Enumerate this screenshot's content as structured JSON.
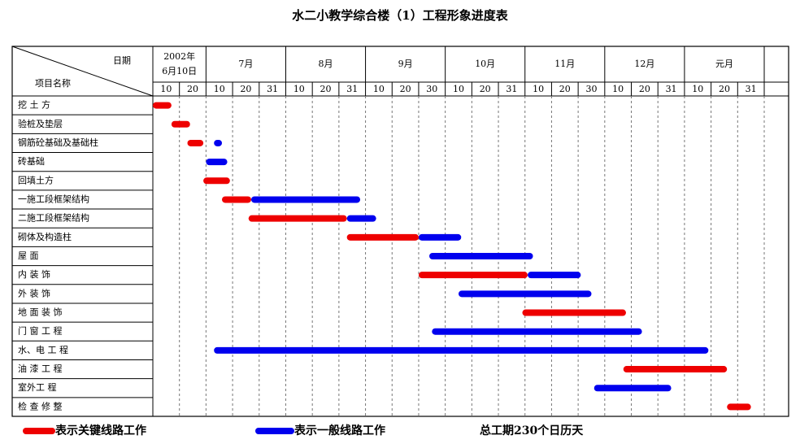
{
  "title": "水二小教学综合楼（1）工程形象进度表",
  "header": {
    "date_label": "日期",
    "item_label": "项目名称",
    "months": [
      {
        "lines": [
          "2002年",
          "6月10日"
        ],
        "days": [
          "10",
          "20"
        ]
      },
      {
        "lines": [
          "7月"
        ],
        "days": [
          "10",
          "20",
          "31"
        ]
      },
      {
        "lines": [
          "8月"
        ],
        "days": [
          "10",
          "20",
          "31"
        ]
      },
      {
        "lines": [
          "9月"
        ],
        "days": [
          "10",
          "20",
          "30"
        ]
      },
      {
        "lines": [
          "10月"
        ],
        "days": [
          "10",
          "20",
          "31"
        ]
      },
      {
        "lines": [
          "11月"
        ],
        "days": [
          "10",
          "20",
          "30"
        ]
      },
      {
        "lines": [
          "12月"
        ],
        "days": [
          "10",
          "20",
          "31"
        ]
      },
      {
        "lines": [
          "元月"
        ],
        "days": [
          "10",
          "20",
          "31"
        ]
      }
    ]
  },
  "tasks": [
    {
      "name": "挖 土 方",
      "key_span": [
        0,
        0.7
      ],
      "normal_span": null
    },
    {
      "name": "验桩及垫层",
      "key_span": [
        0.7,
        1.4
      ],
      "normal_span": null
    },
    {
      "name": "钢筋砼基础及基础柱",
      "key_span": [
        1.3,
        1.9
      ],
      "normal_span": [
        2.3,
        2.6
      ]
    },
    {
      "name": "砖基础",
      "key_span": null,
      "normal_span": [
        2.0,
        2.8
      ]
    },
    {
      "name": "回填土方",
      "key_span": [
        1.9,
        2.9
      ],
      "normal_span": null
    },
    {
      "name": "一施工段框架结构",
      "key_span": [
        2.6,
        3.7
      ],
      "normal_span": [
        3.7,
        7.8
      ]
    },
    {
      "name": "二施工段框架结构",
      "key_span": [
        3.6,
        7.3
      ],
      "normal_span": [
        7.3,
        8.4
      ]
    },
    {
      "name": "砌体及构造柱",
      "key_span": [
        7.3,
        10.0
      ],
      "normal_span": [
        10.0,
        11.6
      ]
    },
    {
      "name": "屋      面",
      "key_span": null,
      "normal_span": [
        10.4,
        14.3
      ]
    },
    {
      "name": "内 装  饰",
      "key_span": [
        10.0,
        14.1
      ],
      "normal_span": [
        14.1,
        16.1
      ]
    },
    {
      "name": "外  装  饰",
      "key_span": null,
      "normal_span": [
        11.5,
        16.5
      ]
    },
    {
      "name": "地  面  装  饰",
      "key_span": [
        13.9,
        17.8
      ],
      "normal_span": null
    },
    {
      "name": "门  窗  工  程",
      "key_span": null,
      "normal_span": [
        10.5,
        18.4
      ]
    },
    {
      "name": "水、电  工  程",
      "key_span": null,
      "normal_span": [
        2.3,
        20.9
      ]
    },
    {
      "name": "油  漆  工  程",
      "key_span": [
        17.7,
        21.6
      ],
      "normal_span": null
    },
    {
      "name": "室外工 程",
      "key_span": null,
      "normal_span": [
        16.6,
        19.5
      ]
    },
    {
      "name": "检  查  修  整",
      "key_span": [
        21.6,
        22.5
      ],
      "normal_span": null
    }
  ],
  "legend": {
    "key": {
      "label": "表示关键线路工作",
      "color": "#ee0000"
    },
    "normal": {
      "label": "表示一般线路工作",
      "color": "#0000ee"
    },
    "total": "总工期230个日历天"
  }
}
